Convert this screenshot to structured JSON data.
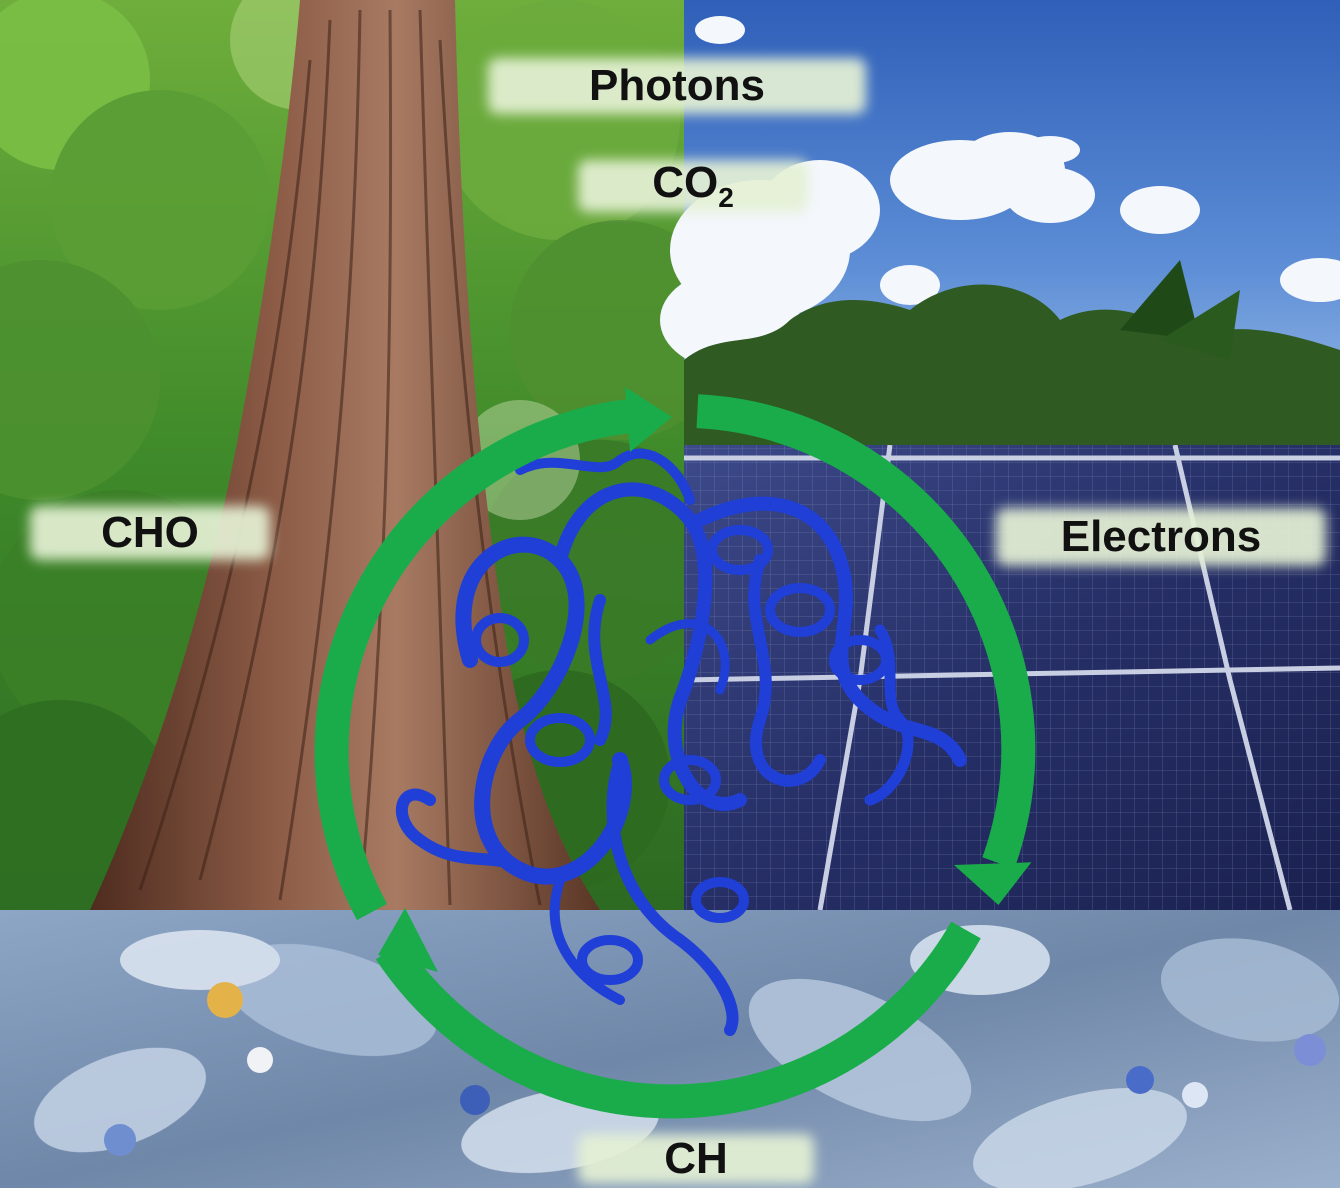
{
  "labels": {
    "photons": "Photons",
    "co2": {
      "main": "CO",
      "subscript": "2"
    },
    "cho": "CHO",
    "electrons": "Electrons",
    "ch": "CH"
  },
  "colors": {
    "cycle_arrow": "#1aac4a",
    "protein_ribbon": "#1f3fd6",
    "label_band": "#e4f0d4",
    "sky": "#3f6fc4",
    "forest": "#3f8a2a",
    "bark": "#7a4a35",
    "solar_panel": "#262f66",
    "plastic_waste": "#7d95b3"
  },
  "panels": [
    {
      "name": "forest-photo",
      "depicts": "redwood tree trunk"
    },
    {
      "name": "solar-photo",
      "depicts": "solar panels under blue sky"
    },
    {
      "name": "plastic-photo",
      "depicts": "crushed plastic bottles"
    }
  ],
  "icons": [
    "cycle-arrow-icon",
    "protein-structure-icon"
  ]
}
